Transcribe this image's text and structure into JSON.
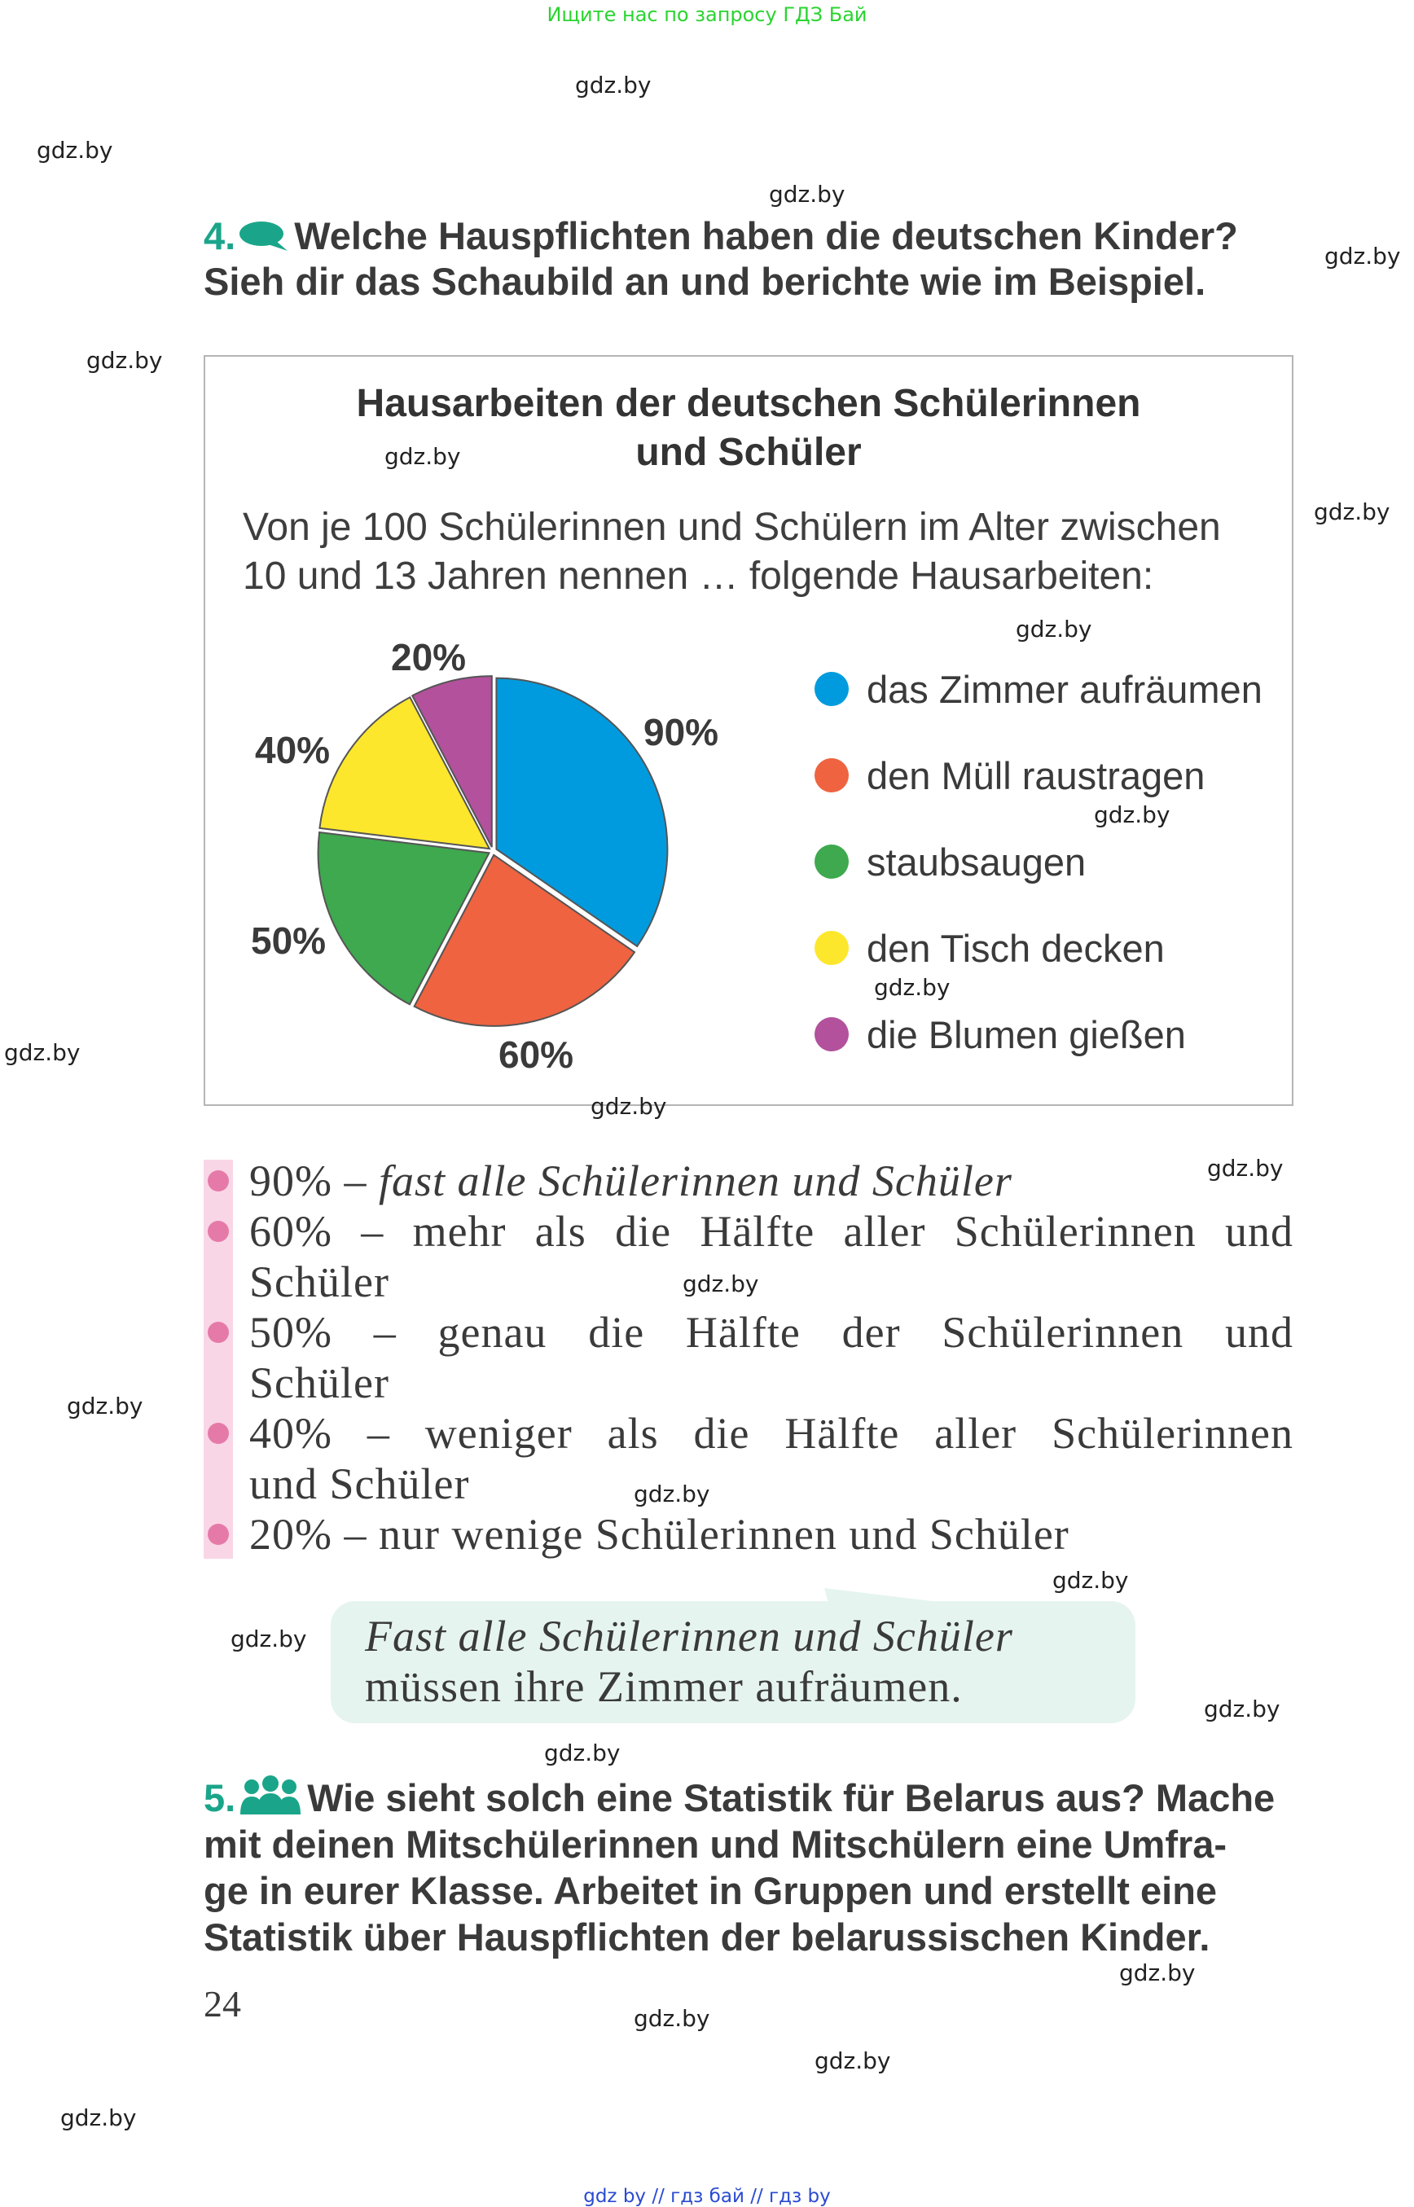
{
  "banner": {
    "top": "Ищите нас по запросу ГДЗ Бай",
    "bottom": "gdz by  //  гдз бай  //  гдз by"
  },
  "watermark": "gdz.by",
  "task4": {
    "number": "4.",
    "line1": "Welche Hauspflichten haben die deutschen Kinder?",
    "line2": "Sieh dir das Schaubild an und berichte wie im Beispiel.",
    "icon": "speech-bubble-icon"
  },
  "chart_data": {
    "type": "pie",
    "title": "Hausarbeiten der deutschen Schülerinnen und Schüler",
    "title_line1": "Hausarbeiten der deutschen Schülerinnen",
    "title_line2": "und Schüler",
    "subtitle_line1": "Von je 100 Schülerinnen und Schülern im Alter zwischen",
    "subtitle_line2": "10 und 13 Jahren nennen … folgende Hausarbeiten:",
    "categories": [
      "das Zimmer aufräumen",
      "den Müll raustragen",
      "staubsaugen",
      "den Tisch decken",
      "die Blumen gießen"
    ],
    "values": [
      90,
      60,
      50,
      40,
      20
    ],
    "value_labels": [
      "90%",
      "60%",
      "50%",
      "40%",
      "20%"
    ],
    "colors": [
      "#009bde",
      "#ef6340",
      "#3ea94e",
      "#fde72d",
      "#b3519d"
    ],
    "legend_position": "right"
  },
  "list": [
    {
      "pct": "90%",
      "dash": "–",
      "text_italic": "fast alle Schülerinnen und Schüler"
    },
    {
      "line1": "60%  –  mehr  als  die  Hälfte  aller  Schülerinnen  und",
      "line2": "Schüler"
    },
    {
      "line1": "50%   –   genau   die   Hälfte   der   Schülerinnen   und",
      "line2": "Schüler"
    },
    {
      "line1": "40%  –  weniger  als  die  Hälfte  aller  Schülerinnen",
      "line2": "und Schüler"
    },
    {
      "line1": "20% – nur wenige Schülerinnen und Schüler"
    }
  ],
  "example": {
    "line1": "Fast alle Schülerinnen und Schüler",
    "line2": "müssen ihre Zimmer aufräumen."
  },
  "task5": {
    "number": "5.",
    "icon": "group-icon",
    "line1": "Wie sieht solch eine Statistik für Belarus aus? Mache",
    "line2": "mit deinen Mitschülerinnen und Mitschülern eine Umfra-",
    "line3": "ge in eurer Klasse. Arbeitet in Gruppen und erstellt eine",
    "line4": "Statistik über Hauspflichten der belarussischen Kinder."
  },
  "page_number": "24"
}
